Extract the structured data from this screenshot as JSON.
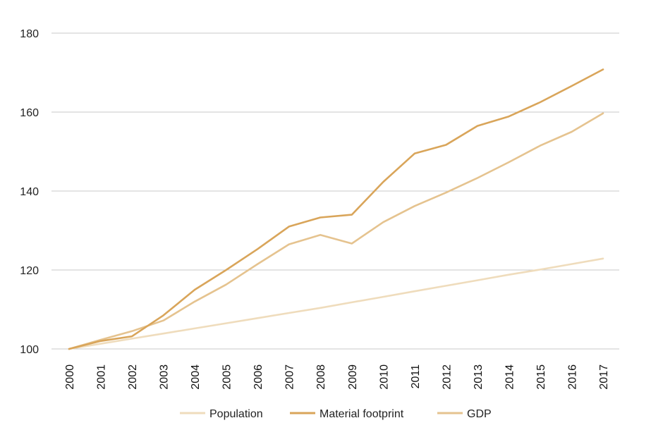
{
  "chart_data": {
    "type": "line",
    "x": [
      "2000",
      "2001",
      "2002",
      "2003",
      "2004",
      "2005",
      "2006",
      "2007",
      "2008",
      "2009",
      "2010",
      "2011",
      "2012",
      "2013",
      "2014",
      "2015",
      "2016",
      "2017"
    ],
    "series": [
      {
        "name": "Population",
        "color": "#efdcbc",
        "values": [
          100,
          101.3,
          102.6,
          103.9,
          105.2,
          106.5,
          107.8,
          109.1,
          110.4,
          111.8,
          113.2,
          114.6,
          116.0,
          117.4,
          118.8,
          120.1,
          121.5,
          122.9
        ]
      },
      {
        "name": "Material footprint",
        "color": "#d9a55a",
        "values": [
          100,
          102.0,
          103.2,
          108.5,
          115.0,
          120.0,
          125.3,
          131.0,
          133.3,
          134.0,
          142.3,
          149.5,
          151.7,
          156.5,
          158.9,
          162.5,
          166.6,
          170.8
        ]
      },
      {
        "name": "GDP",
        "color": "#e5c38f",
        "values": [
          100,
          102.3,
          104.5,
          107.2,
          112.0,
          116.3,
          121.5,
          126.5,
          128.9,
          126.7,
          132.1,
          136.2,
          139.6,
          143.3,
          147.3,
          151.5,
          155.0,
          159.7
        ]
      }
    ],
    "ylim": [
      100,
      180
    ],
    "yticks": [
      "100",
      "120",
      "140",
      "160",
      "180"
    ],
    "grid": true,
    "legend_position": "bottom-center"
  }
}
